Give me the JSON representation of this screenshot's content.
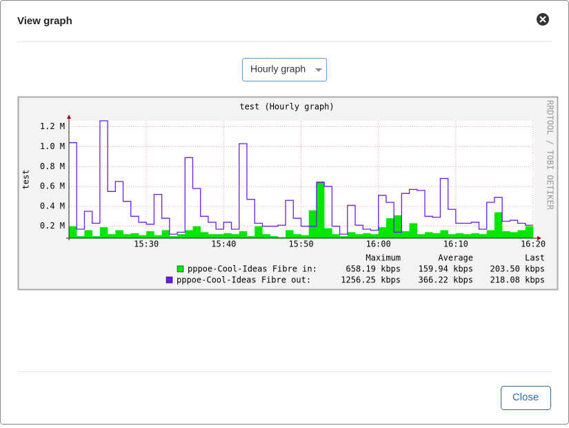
{
  "dialog": {
    "title": "View graph",
    "select": "Hourly graph",
    "close_button": "Close"
  },
  "chart_data": {
    "type": "line",
    "title": "test (Hourly graph)",
    "y_label": "test",
    "watermark": "RRDTOOL / TOBI OETIKER",
    "x": [
      "15:20",
      "15:21",
      "15:22",
      "15:23",
      "15:24",
      "15:25",
      "15:26",
      "15:27",
      "15:28",
      "15:29",
      "15:30",
      "15:31",
      "15:32",
      "15:33",
      "15:34",
      "15:35",
      "15:36",
      "15:37",
      "15:38",
      "15:39",
      "15:40",
      "15:41",
      "15:42",
      "15:43",
      "15:44",
      "15:45",
      "15:46",
      "15:47",
      "15:48",
      "15:49",
      "15:50",
      "15:51",
      "15:52",
      "15:53",
      "15:54",
      "15:55",
      "15:56",
      "15:57",
      "15:58",
      "15:59",
      "16:00",
      "16:01",
      "16:02",
      "16:03",
      "16:04",
      "16:05",
      "16:06",
      "16:07",
      "16:08",
      "16:09",
      "16:10",
      "16:11",
      "16:12",
      "16:13",
      "16:14",
      "16:15",
      "16:16",
      "16:17",
      "16:18",
      "16:19"
    ],
    "xlim": [
      "15:20",
      "16:20"
    ],
    "xticks": [
      "15:30",
      "15:40",
      "15:50",
      "16:00",
      "16:10",
      "16:20"
    ],
    "ylim": [
      0.08,
      1.26
    ],
    "yticks": [
      {
        "value": 0.2,
        "label": "0.2 M"
      },
      {
        "value": 0.4,
        "label": "0.4 M"
      },
      {
        "value": 0.6,
        "label": "0.6 M"
      },
      {
        "value": 0.8,
        "label": "0.8 M"
      },
      {
        "value": 1.0,
        "label": "1.0 M"
      },
      {
        "value": 1.2,
        "label": "1.2 M"
      }
    ],
    "grid": true,
    "series": [
      {
        "name": "pppoe-Cool-Ideas Fibre in:",
        "color": "#00e600",
        "style": "area",
        "values": [
          0.2,
          0.1,
          0.16,
          0.1,
          0.19,
          0.12,
          0.16,
          0.12,
          0.13,
          0.11,
          0.15,
          0.11,
          0.16,
          0.1,
          0.12,
          0.16,
          0.2,
          0.14,
          0.12,
          0.12,
          0.13,
          0.12,
          0.15,
          0.1,
          0.2,
          0.12,
          0.1,
          0.09,
          0.16,
          0.12,
          0.11,
          0.36,
          0.65,
          0.18,
          0.12,
          0.1,
          0.14,
          0.12,
          0.13,
          0.12,
          0.19,
          0.28,
          0.31,
          0.15,
          0.23,
          0.12,
          0.14,
          0.13,
          0.16,
          0.12,
          0.13,
          0.12,
          0.13,
          0.12,
          0.16,
          0.34,
          0.15,
          0.14,
          0.16,
          0.2
        ]
      },
      {
        "name": "pppoe-Cool-Ideas Fibre out:",
        "color": "#6a1bf0",
        "style": "line",
        "values": [
          1.04,
          0.17,
          0.35,
          0.23,
          1.26,
          0.55,
          0.65,
          0.45,
          0.3,
          0.24,
          0.22,
          0.52,
          0.28,
          0.12,
          0.14,
          0.89,
          0.58,
          0.3,
          0.24,
          0.17,
          0.24,
          0.17,
          1.03,
          0.47,
          0.23,
          0.2,
          0.2,
          0.21,
          0.46,
          0.28,
          0.2,
          0.2,
          0.64,
          0.6,
          0.2,
          0.12,
          0.41,
          0.21,
          0.17,
          0.16,
          0.51,
          0.44,
          0.14,
          0.53,
          0.57,
          0.56,
          0.3,
          0.29,
          0.68,
          0.37,
          0.23,
          0.23,
          0.24,
          0.17,
          0.44,
          0.49,
          0.25,
          0.26,
          0.23,
          0.21
        ]
      }
    ],
    "stats": {
      "headers": [
        "Maximum",
        "Average",
        "Last"
      ],
      "rows": [
        [
          "658.19 kbps",
          "159.94 kbps",
          "203.50 kbps"
        ],
        [
          "1256.25 kbps",
          "366.22 kbps",
          "218.08 kbps"
        ]
      ]
    }
  }
}
